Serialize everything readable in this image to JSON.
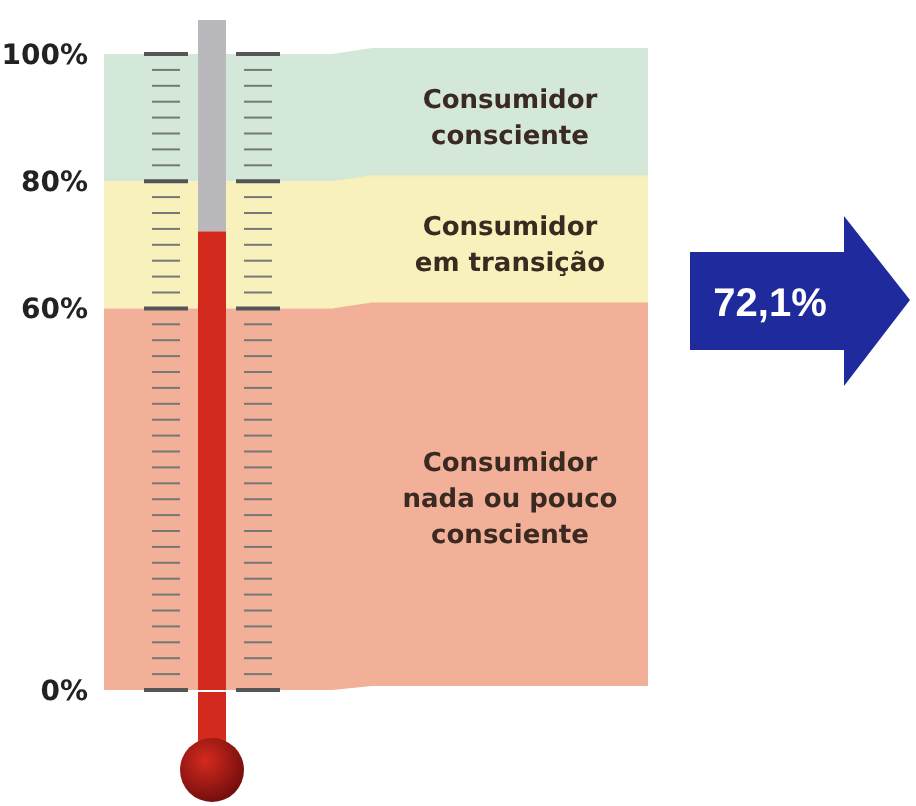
{
  "chart_data": {
    "type": "bar",
    "categories": [
      null
    ],
    "values": [
      72.1
    ],
    "annotations": [
      "72,1%"
    ],
    "color": "#d42a1e",
    "ylim": [
      0,
      100
    ],
    "yticks": [
      {
        "value": 0,
        "label": "0%"
      },
      {
        "value": 60,
        "label": "60%"
      },
      {
        "value": 80,
        "label": "80%"
      },
      {
        "value": 100,
        "label": "100%"
      }
    ],
    "bands": [
      {
        "axis": "y",
        "from": 80,
        "to": 100,
        "label": "Consumidor consciente",
        "color": "#cfe6d6"
      },
      {
        "axis": "y",
        "from": 60,
        "to": 80,
        "label": "Consumidor em transição",
        "color": "#f7efb4"
      },
      {
        "axis": "y",
        "from": 0,
        "to": 60,
        "label": "Consumidor nada ou pouco consciente",
        "color": "#f0a78c"
      }
    ]
  }
}
